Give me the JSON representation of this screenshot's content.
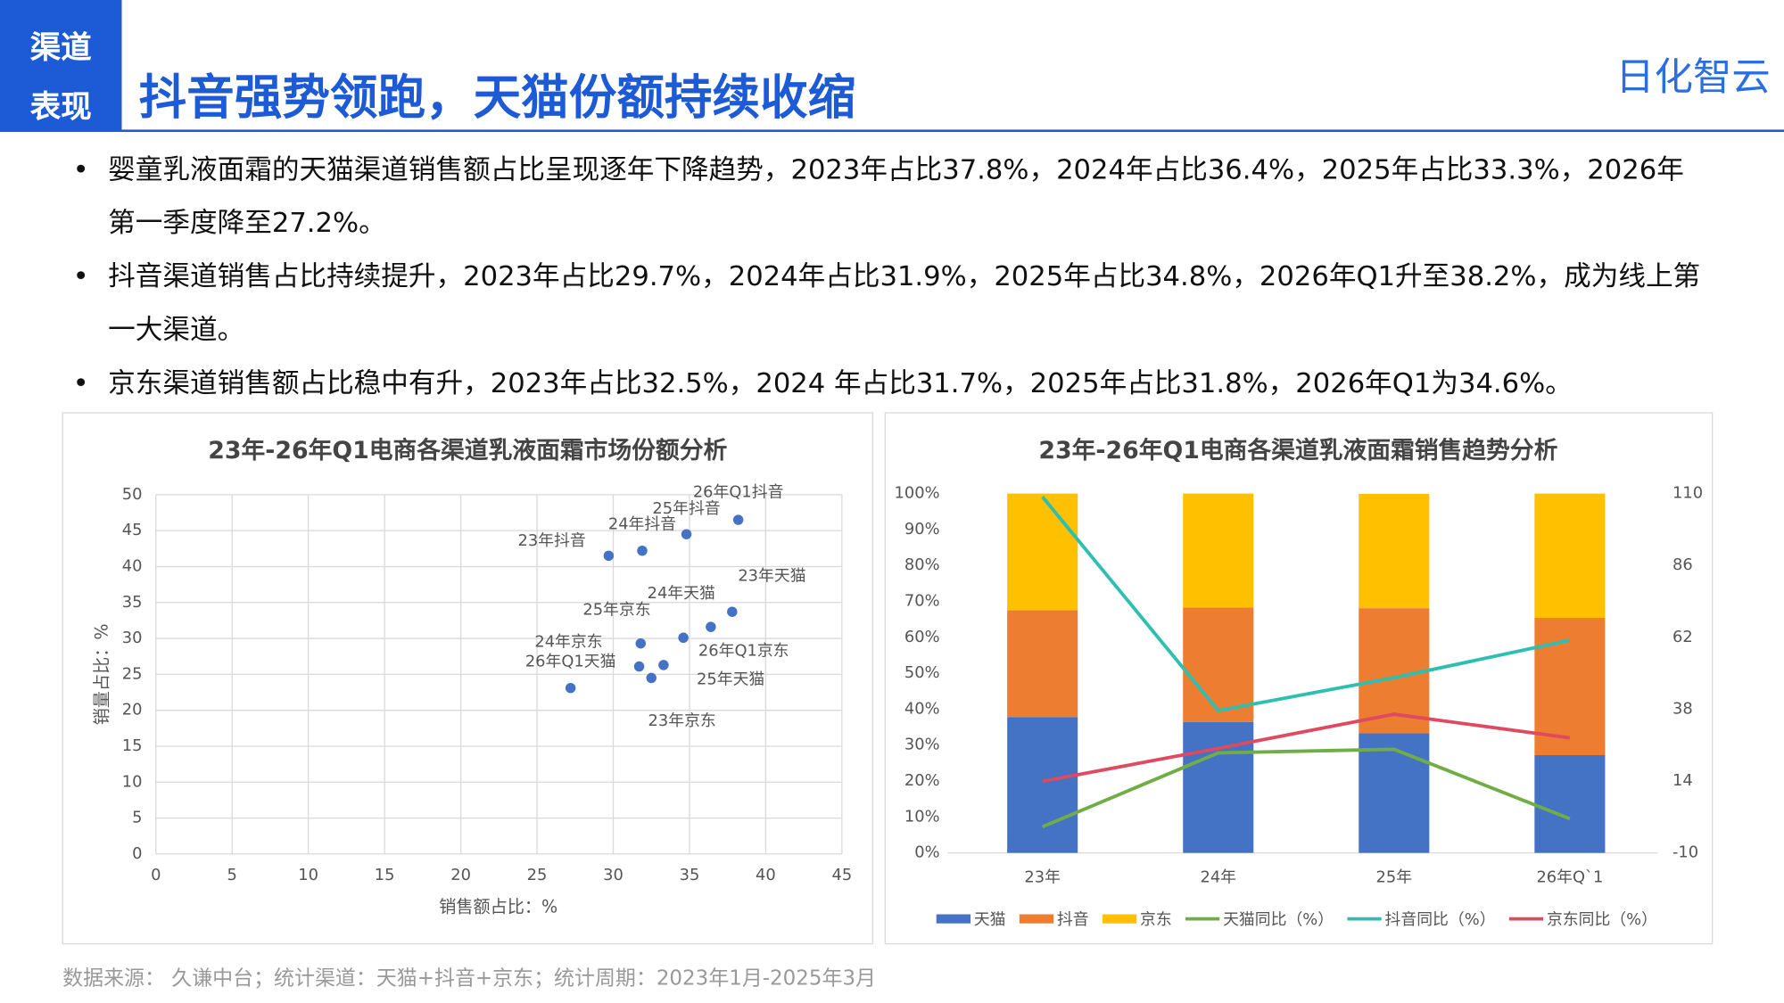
{
  "header": {
    "tag": [
      "渠道",
      "表现"
    ],
    "title": "抖音强势领跑，天猫份额持续收缩",
    "logo": "日化智云"
  },
  "bullets": [
    "婴童乳液面霜的天猫渠道销售额占比呈现逐年下降趋势，2023年占比37.8%，2024年占比36.4%，2025年占比33.3%，2026年第一季度降至27.2%。",
    "抖音渠道销售占比持续提升，2023年占比29.7%，2024年占比31.9%，2025年占比34.8%，2026年Q1升至38.2%，成为线上第一大渠道。",
    "京东渠道销售额占比稳中有升，2023年占比32.5%，2024 年占比31.7%，2025年占比31.8%，2026年Q1为34.6%。"
  ],
  "source": "数据来源： 久谦中台；统计渠道：天猫+抖音+京东；统计周期：2023年1月-2025年3月",
  "chart_data": [
    {
      "type": "scatter",
      "title": "23年-26年Q1电商各渠道乳液面霜市场份额分析",
      "x_label": "销售额占比：%",
      "y_label": "销量占比：%",
      "color": "#4472c4",
      "grid": true,
      "point_labels": [
        "23年抖音",
        "24年抖音",
        "25年抖音",
        "26年Q1抖音",
        "23年天猫",
        "24年天猫",
        "25年天猫",
        "26年Q1天猫",
        "23年京东",
        "24年京东",
        "25年京东",
        "26年Q1京东"
      ],
      "x": [
        29.7,
        31.9,
        34.8,
        38.2,
        37.8,
        36.4,
        33.3,
        27.2,
        32.5,
        31.7,
        31.8,
        34.6
      ],
      "values": [
        41.5,
        42.2,
        44.5,
        46.5,
        33.7,
        31.6,
        26.3,
        23.1,
        24.5,
        26.1,
        29.3,
        30.1
      ],
      "xlim": [
        0,
        45
      ],
      "xticks": [
        0,
        5,
        10,
        15,
        20,
        25,
        30,
        35,
        40,
        45
      ],
      "ylim": [
        0,
        50
      ],
      "yticks": [
        0,
        5,
        10,
        15,
        20,
        25,
        30,
        35,
        40,
        45,
        50
      ]
    },
    {
      "type": "bar",
      "stacked": true,
      "title": "23年-26年Q1电商各渠道乳液面霜销售趋势分析",
      "categories": [
        "23年",
        "24年",
        "25年",
        "26年Q`1"
      ],
      "series": [
        {
          "name": "天猫",
          "color": "#4472c4",
          "values": [
            37.8,
            36.4,
            33.3,
            27.2
          ]
        },
        {
          "name": "抖音",
          "color": "#ed7d31",
          "values": [
            29.7,
            31.9,
            34.8,
            38.2
          ]
        },
        {
          "name": "京东",
          "color": "#ffc000",
          "values": [
            32.5,
            31.7,
            31.8,
            34.6
          ]
        },
        {
          "name": "天猫同比（%）",
          "type": "line",
          "axis": "y2",
          "color": "#70ad47",
          "values": [
            -1.3,
            23.4,
            24.6,
            1.4
          ]
        },
        {
          "name": "抖音同比（%）",
          "type": "line",
          "axis": "y2",
          "color": "#2ebfb0",
          "values": [
            108.9,
            37.5,
            48.5,
            61.0
          ]
        },
        {
          "name": "京东同比（%）",
          "type": "line",
          "axis": "y2",
          "color": "#de4a5f",
          "values": [
            13.9,
            24.9,
            36.3,
            28.4
          ]
        }
      ],
      "ylim": [
        0,
        100
      ],
      "yticks": [
        {
          "value": 0,
          "label": "0%"
        },
        {
          "value": 10,
          "label": "10%"
        },
        {
          "value": 20,
          "label": "20%"
        },
        {
          "value": 30,
          "label": "30%"
        },
        {
          "value": 40,
          "label": "40%"
        },
        {
          "value": 50,
          "label": "50%"
        },
        {
          "value": 60,
          "label": "60%"
        },
        {
          "value": 70,
          "label": "70%"
        },
        {
          "value": 80,
          "label": "80%"
        },
        {
          "value": 90,
          "label": "90%"
        },
        {
          "value": 100,
          "label": "100%"
        }
      ],
      "y2lim": [
        -10,
        110
      ],
      "y2ticks": [
        -10,
        14,
        38,
        62,
        86,
        110
      ]
    }
  ]
}
